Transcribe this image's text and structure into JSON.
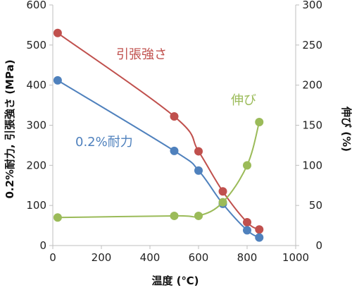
{
  "chart_data": {
    "type": "line",
    "xlabel": "温度 (℃)",
    "ylabel_left": "0.2%耐力, 引張強さ (MPa)",
    "ylabel_right": "伸び (%)",
    "xlim": [
      0,
      1000
    ],
    "ylim_left": [
      0,
      600
    ],
    "ylim_right": [
      0,
      300
    ],
    "x_ticks": [
      "0",
      "200",
      "400",
      "600",
      "800",
      "1000"
    ],
    "y_left_ticks": [
      "0",
      "100",
      "200",
      "300",
      "400",
      "500",
      "600"
    ],
    "y_right_ticks": [
      "0",
      "50",
      "100",
      "150",
      "200",
      "250",
      "300"
    ],
    "grid": false,
    "series": [
      {
        "name": "引張強さ",
        "axis": "left",
        "color": "#c0504d",
        "x": [
          20,
          500,
          600,
          700,
          800,
          850
        ],
        "y": [
          530,
          322,
          235,
          135,
          58,
          40
        ]
      },
      {
        "name": "0.2%耐力",
        "axis": "left",
        "color": "#4f81bd",
        "x": [
          20,
          500,
          600,
          700,
          800,
          850
        ],
        "y": [
          412,
          236,
          187,
          104,
          38,
          20
        ]
      },
      {
        "name": "伸び",
        "axis": "right",
        "color": "#9bbb59",
        "x": [
          20,
          500,
          600,
          700,
          800,
          850
        ],
        "y": [
          35,
          37,
          37,
          54,
          100,
          154
        ]
      }
    ]
  }
}
